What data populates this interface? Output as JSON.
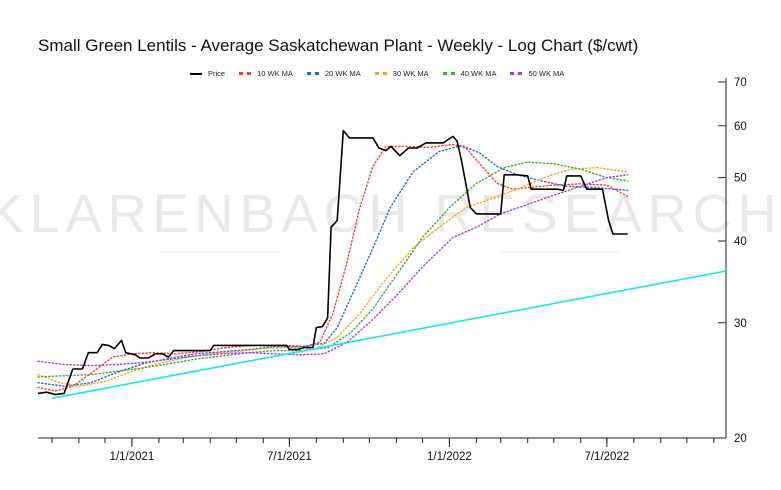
{
  "chart_data": {
    "type": "line",
    "title": "Small Green Lentils - Average Saskatchewan Plant - Weekly - Log Chart ($/cwt)",
    "xlabel": "",
    "ylabel": "",
    "y_scale": "log",
    "y_axis_side": "right",
    "ylim": [
      20,
      70
    ],
    "yticks": [
      20,
      30,
      40,
      50,
      60,
      70
    ],
    "xlim": [
      "2020-09-15",
      "2022-11-15"
    ],
    "xticks": [
      {
        "date": "2021-01-01",
        "label": "1/1/2021"
      },
      {
        "date": "2021-07-01",
        "label": "7/1/2021"
      },
      {
        "date": "2022-01-01",
        "label": "1/1/2022"
      },
      {
        "date": "2022-07-01",
        "label": "7/1/2022"
      }
    ],
    "legend_position": "top-center",
    "grid": false,
    "watermark": "KLARENBACH RESEARCH",
    "series": [
      {
        "name": "Price",
        "color": "#000000",
        "style": "solid",
        "points": [
          [
            "2020-09-15",
            23.4
          ],
          [
            "2020-09-25",
            23.5
          ],
          [
            "2020-10-05",
            23.3
          ],
          [
            "2020-10-15",
            23.4
          ],
          [
            "2020-10-25",
            25.5
          ],
          [
            "2020-11-05",
            25.5
          ],
          [
            "2020-11-12",
            27
          ],
          [
            "2020-11-22",
            27
          ],
          [
            "2020-11-28",
            27.8
          ],
          [
            "2020-12-05",
            27.7
          ],
          [
            "2020-12-12",
            27.4
          ],
          [
            "2020-12-20",
            28.2
          ],
          [
            "2020-12-25",
            27.0
          ],
          [
            "2021-01-05",
            26.8
          ],
          [
            "2021-01-10",
            26.5
          ],
          [
            "2021-01-20",
            26.5
          ],
          [
            "2021-01-28",
            26.9
          ],
          [
            "2021-02-05",
            26.9
          ],
          [
            "2021-02-12",
            26.6
          ],
          [
            "2021-02-18",
            27.2
          ],
          [
            "2021-03-01",
            27.2
          ],
          [
            "2021-03-15",
            27.2
          ],
          [
            "2021-04-01",
            27.2
          ],
          [
            "2021-04-05",
            27.7
          ],
          [
            "2021-05-01",
            27.7
          ],
          [
            "2021-06-01",
            27.7
          ],
          [
            "2021-06-28",
            27.7
          ],
          [
            "2021-07-01",
            27.3
          ],
          [
            "2021-07-10",
            27.3
          ],
          [
            "2021-07-18",
            27.5
          ],
          [
            "2021-07-28",
            27.5
          ],
          [
            "2021-08-01",
            29.5
          ],
          [
            "2021-08-08",
            29.6
          ],
          [
            "2021-08-14",
            30.5
          ],
          [
            "2021-08-18",
            42
          ],
          [
            "2021-08-25",
            43
          ],
          [
            "2021-09-01",
            59
          ],
          [
            "2021-09-08",
            57.5
          ],
          [
            "2021-09-20",
            57.5
          ],
          [
            "2021-10-05",
            57.5
          ],
          [
            "2021-10-12",
            55.5
          ],
          [
            "2021-10-20",
            55.0
          ],
          [
            "2021-10-26",
            55.8
          ],
          [
            "2021-11-05",
            54.0
          ],
          [
            "2021-11-15",
            55.5
          ],
          [
            "2021-11-25",
            55.5
          ],
          [
            "2021-12-05",
            56.5
          ],
          [
            "2021-12-15",
            56.5
          ],
          [
            "2021-12-25",
            56.5
          ],
          [
            "2022-01-05",
            57.8
          ],
          [
            "2022-01-10",
            56.8
          ],
          [
            "2022-01-15",
            53
          ],
          [
            "2022-01-25",
            45
          ],
          [
            "2022-02-01",
            44
          ],
          [
            "2022-02-15",
            44
          ],
          [
            "2022-03-01",
            44
          ],
          [
            "2022-03-05",
            50.5
          ],
          [
            "2022-03-20",
            50.5
          ],
          [
            "2022-04-01",
            50.3
          ],
          [
            "2022-04-05",
            48
          ],
          [
            "2022-04-20",
            48
          ],
          [
            "2022-05-05",
            48
          ],
          [
            "2022-05-12",
            47.8
          ],
          [
            "2022-05-16",
            50.3
          ],
          [
            "2022-06-01",
            50.3
          ],
          [
            "2022-06-08",
            48
          ],
          [
            "2022-06-20",
            48
          ],
          [
            "2022-06-26",
            48
          ],
          [
            "2022-07-03",
            43
          ],
          [
            "2022-07-08",
            41
          ],
          [
            "2022-07-25",
            41
          ]
        ]
      },
      {
        "name": "10 WK MA",
        "color": "#ff3b1f",
        "style": "dotted",
        "points": [
          [
            "2020-09-15",
            23.9
          ],
          [
            "2020-10-05",
            23.6
          ],
          [
            "2020-10-25",
            24.0
          ],
          [
            "2020-11-20",
            25.4
          ],
          [
            "2020-12-10",
            26.6
          ],
          [
            "2021-01-01",
            26.9
          ],
          [
            "2021-01-25",
            27.0
          ],
          [
            "2021-02-20",
            26.9
          ],
          [
            "2021-03-20",
            27.1
          ],
          [
            "2021-04-20",
            27.5
          ],
          [
            "2021-05-20",
            27.7
          ],
          [
            "2021-06-25",
            27.7
          ],
          [
            "2021-07-20",
            27.6
          ],
          [
            "2021-08-05",
            28.0
          ],
          [
            "2021-08-20",
            31.0
          ],
          [
            "2021-09-05",
            37
          ],
          [
            "2021-09-20",
            45
          ],
          [
            "2021-10-05",
            52
          ],
          [
            "2021-10-20",
            55.8
          ],
          [
            "2021-11-10",
            55.8
          ],
          [
            "2021-12-10",
            55.6
          ],
          [
            "2022-01-05",
            56.2
          ],
          [
            "2022-01-20",
            55.5
          ],
          [
            "2022-02-05",
            52.5
          ],
          [
            "2022-02-25",
            49.0
          ],
          [
            "2022-03-15",
            48.0
          ],
          [
            "2022-04-05",
            48.3
          ],
          [
            "2022-05-01",
            48.7
          ],
          [
            "2022-06-01",
            48.9
          ],
          [
            "2022-07-01",
            48.7
          ],
          [
            "2022-07-25",
            46.8
          ]
        ]
      },
      {
        "name": "20 WK MA",
        "color": "#2b63d9",
        "style": "dotted",
        "points": [
          [
            "2020-09-15",
            24.3
          ],
          [
            "2020-10-15",
            24.0
          ],
          [
            "2020-11-15",
            24.3
          ],
          [
            "2020-12-15",
            25.2
          ],
          [
            "2021-01-15",
            26.0
          ],
          [
            "2021-02-15",
            26.5
          ],
          [
            "2021-03-15",
            26.9
          ],
          [
            "2021-04-15",
            27.1
          ],
          [
            "2021-05-15",
            27.3
          ],
          [
            "2021-06-15",
            27.6
          ],
          [
            "2021-07-15",
            27.6
          ],
          [
            "2021-08-10",
            27.9
          ],
          [
            "2021-08-25",
            29.5
          ],
          [
            "2021-09-15",
            34
          ],
          [
            "2021-10-05",
            39
          ],
          [
            "2021-10-25",
            45
          ],
          [
            "2021-11-20",
            51
          ],
          [
            "2021-12-20",
            54.8
          ],
          [
            "2022-01-15",
            56
          ],
          [
            "2022-02-05",
            54.5
          ],
          [
            "2022-02-25",
            52.0
          ],
          [
            "2022-03-20",
            50.5
          ],
          [
            "2022-04-15",
            49.5
          ],
          [
            "2022-05-15",
            48.5
          ],
          [
            "2022-06-15",
            48.3
          ],
          [
            "2022-07-10",
            48.0
          ],
          [
            "2022-07-25",
            47.8
          ]
        ]
      },
      {
        "name": "30 WK MA",
        "color": "#f5a31a",
        "style": "dotted",
        "points": [
          [
            "2020-09-15",
            25.0
          ],
          [
            "2020-10-10",
            24.3
          ],
          [
            "2020-11-01",
            24.0
          ],
          [
            "2020-12-01",
            24.4
          ],
          [
            "2021-01-01",
            25.3
          ],
          [
            "2021-02-01",
            26.0
          ],
          [
            "2021-03-01",
            26.5
          ],
          [
            "2021-04-01",
            26.9
          ],
          [
            "2021-05-01",
            27.1
          ],
          [
            "2021-06-01",
            27.4
          ],
          [
            "2021-07-01",
            27.5
          ],
          [
            "2021-08-01",
            27.4
          ],
          [
            "2021-08-25",
            28.5
          ],
          [
            "2021-09-20",
            31
          ],
          [
            "2021-10-20",
            35
          ],
          [
            "2021-11-20",
            39
          ],
          [
            "2021-12-20",
            42
          ],
          [
            "2022-01-20",
            45
          ],
          [
            "2022-02-20",
            46.5
          ],
          [
            "2022-03-20",
            48.0
          ],
          [
            "2022-04-20",
            50.0
          ],
          [
            "2022-05-20",
            51.5
          ],
          [
            "2022-06-20",
            51.8
          ],
          [
            "2022-07-25",
            51.0
          ]
        ]
      },
      {
        "name": "40 WK MA",
        "color": "#3aaa35",
        "style": "dotted",
        "points": [
          [
            "2020-09-15",
            24.8
          ],
          [
            "2020-10-15",
            24.9
          ],
          [
            "2020-11-15",
            25.0
          ],
          [
            "2020-12-15",
            25.3
          ],
          [
            "2021-01-15",
            25.6
          ],
          [
            "2021-02-15",
            26.0
          ],
          [
            "2021-03-15",
            26.4
          ],
          [
            "2021-04-15",
            26.7
          ],
          [
            "2021-05-15",
            27.0
          ],
          [
            "2021-06-15",
            27.2
          ],
          [
            "2021-07-15",
            27.2
          ],
          [
            "2021-08-15",
            27.5
          ],
          [
            "2021-09-10",
            29
          ],
          [
            "2021-10-05",
            31.5
          ],
          [
            "2021-11-01",
            35.5
          ],
          [
            "2021-12-01",
            40.5
          ],
          [
            "2022-01-01",
            45
          ],
          [
            "2022-02-01",
            49
          ],
          [
            "2022-03-05",
            51.8
          ],
          [
            "2022-04-01",
            52.8
          ],
          [
            "2022-05-01",
            52.5
          ],
          [
            "2022-06-01",
            51.5
          ],
          [
            "2022-07-01",
            50.0
          ],
          [
            "2022-07-25",
            49.4
          ]
        ]
      },
      {
        "name": "50 WK MA",
        "color": "#a23be8",
        "style": "dotted",
        "points": [
          [
            "2020-09-15",
            26.2
          ],
          [
            "2020-10-15",
            25.9
          ],
          [
            "2020-11-15",
            25.8
          ],
          [
            "2020-12-15",
            25.9
          ],
          [
            "2021-01-15",
            26.1
          ],
          [
            "2021-02-15",
            26.4
          ],
          [
            "2021-03-15",
            26.7
          ],
          [
            "2021-04-15",
            26.9
          ],
          [
            "2021-05-15",
            27.0
          ],
          [
            "2021-06-15",
            26.9
          ],
          [
            "2021-07-15",
            26.8
          ],
          [
            "2021-08-10",
            26.9
          ],
          [
            "2021-09-05",
            28
          ],
          [
            "2021-10-01",
            30
          ],
          [
            "2021-11-01",
            33
          ],
          [
            "2021-12-01",
            36.5
          ],
          [
            "2022-01-05",
            40.5
          ],
          [
            "2022-02-01",
            42
          ],
          [
            "2022-03-01",
            44
          ],
          [
            "2022-04-01",
            45.5
          ],
          [
            "2022-05-01",
            47
          ],
          [
            "2022-06-01",
            48.5
          ],
          [
            "2022-07-01",
            50.0
          ],
          [
            "2022-07-25",
            50.5
          ]
        ]
      },
      {
        "name": "",
        "color": "#19e3f0",
        "style": "solid",
        "role": "trendline",
        "points": [
          [
            "2020-10-01",
            23.0
          ],
          [
            "2022-11-15",
            36.0
          ]
        ]
      }
    ]
  }
}
